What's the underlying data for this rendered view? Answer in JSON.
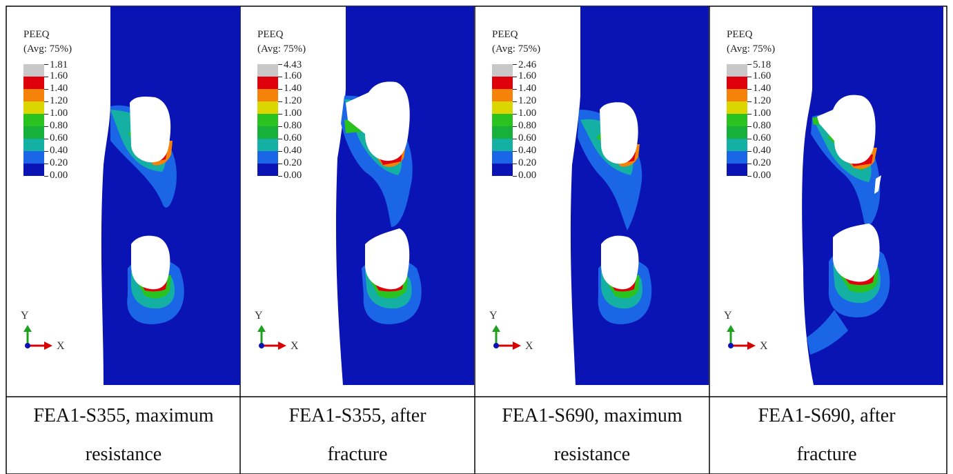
{
  "legend": {
    "variable": "PEEQ",
    "averaging": "(Avg: 75%)",
    "ticks": [
      "1.60",
      "1.40",
      "1.20",
      "1.00",
      "0.80",
      "0.60",
      "0.40",
      "0.20",
      "0.00"
    ],
    "colors": [
      "#c8c8c8",
      "#e0000c",
      "#f5830a",
      "#dcd600",
      "#29c21e",
      "#17b03a",
      "#14b0a4",
      "#1a66e6",
      "#0a14b4"
    ]
  },
  "axes": {
    "y_label": "Y",
    "x_label": "X"
  },
  "panels": [
    {
      "max_value": "1.81",
      "caption_line1": "FEA1-S355, maximum",
      "caption_line2": "resistance"
    },
    {
      "max_value": "4.43",
      "caption_line1": "FEA1-S355, after",
      "caption_line2": "fracture"
    },
    {
      "max_value": "2.46",
      "caption_line1": "FEA1-S690, maximum",
      "caption_line2": "resistance"
    },
    {
      "max_value": "5.18",
      "caption_line1": "FEA1-S690, after",
      "caption_line2": "fracture"
    }
  ]
}
